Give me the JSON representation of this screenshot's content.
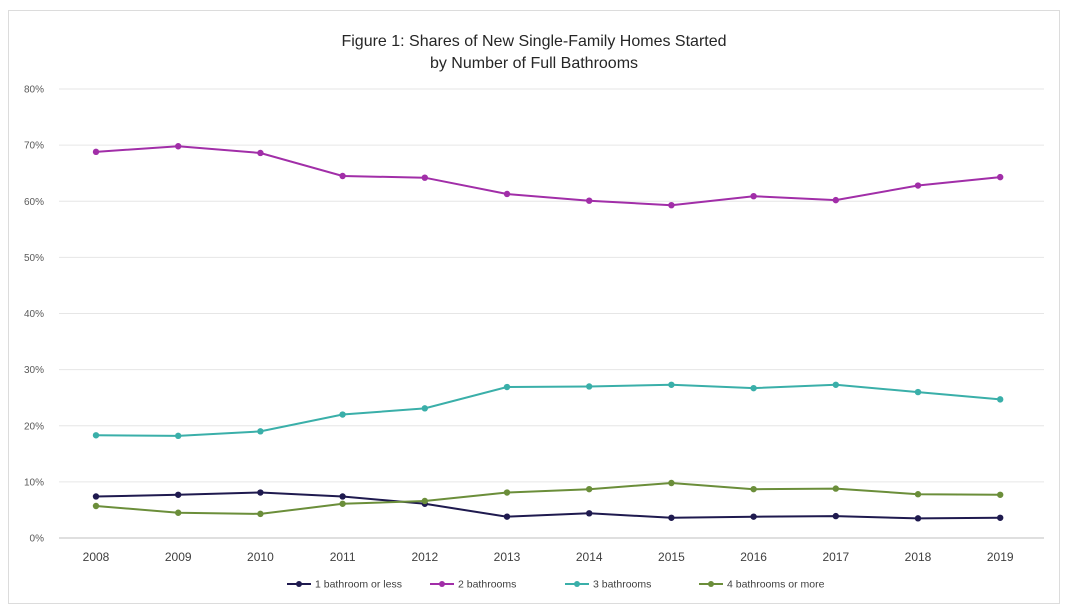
{
  "chart_data": {
    "type": "line",
    "title_lines": [
      "Figure 1: Shares of New Single-Family Homes Started",
      "by Number of Full Bathrooms"
    ],
    "x": [
      "2008",
      "2009",
      "2010",
      "2011",
      "2012",
      "2013",
      "2014",
      "2015",
      "2016",
      "2017",
      "2018",
      "2019"
    ],
    "y_ticks": [
      "0%",
      "10%",
      "20%",
      "30%",
      "40%",
      "50%",
      "60%",
      "70%",
      "80%"
    ],
    "ylim": [
      0,
      80
    ],
    "grid": true,
    "legend_position": "bottom",
    "series": [
      {
        "name": "1 bathroom or less",
        "color": "#1f1a4f",
        "values": [
          7.4,
          7.7,
          8.1,
          7.4,
          6.1,
          3.8,
          4.4,
          3.6,
          3.8,
          3.9,
          3.5,
          3.6
        ]
      },
      {
        "name": "2 bathrooms",
        "color": "#a12ea8",
        "values": [
          68.8,
          69.8,
          68.6,
          64.5,
          64.2,
          61.3,
          60.1,
          59.3,
          60.9,
          60.2,
          62.8,
          64.3
        ]
      },
      {
        "name": "3 bathrooms",
        "color": "#3aafa9",
        "values": [
          18.3,
          18.2,
          19.0,
          22.0,
          23.1,
          26.9,
          27.0,
          27.3,
          26.7,
          27.3,
          26.0,
          24.7
        ]
      },
      {
        "name": "4 bathrooms or more",
        "color": "#6b8e3a",
        "values": [
          5.7,
          4.5,
          4.3,
          6.1,
          6.6,
          8.1,
          8.7,
          9.8,
          8.7,
          8.8,
          7.8,
          7.7
        ]
      }
    ]
  }
}
